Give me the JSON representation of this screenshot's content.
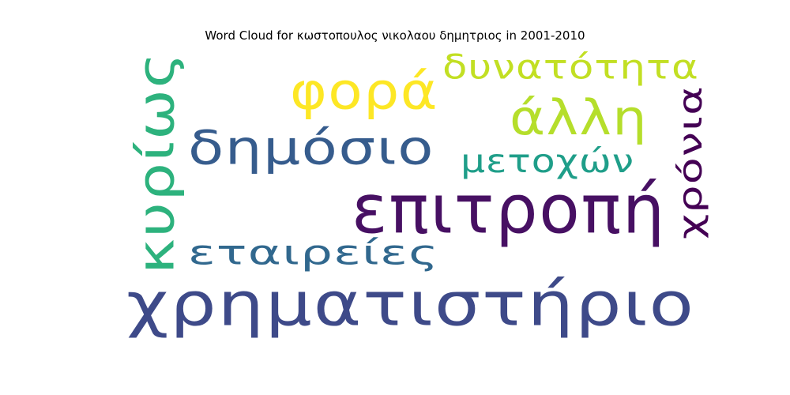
{
  "chart_data": {
    "type": "wordcloud",
    "title": "Word Cloud for κωστοπουλος νικολαου δημητριος in 2001-2010",
    "words": [
      {
        "text": "χρηματιστήριο",
        "color": "#3e4a89",
        "orientation": "horizontal"
      },
      {
        "text": "επιτροπή",
        "color": "#471063",
        "orientation": "horizontal"
      },
      {
        "text": "δημόσιο",
        "color": "#365c8d",
        "orientation": "horizontal"
      },
      {
        "text": "κυρίως",
        "color": "#2db27d",
        "orientation": "vertical"
      },
      {
        "text": "φορά",
        "color": "#fde725",
        "orientation": "horizontal"
      },
      {
        "text": "άλλη",
        "color": "#b5de2b",
        "orientation": "horizontal"
      },
      {
        "text": "δυνατότητα",
        "color": "#c2df23",
        "orientation": "horizontal"
      },
      {
        "text": "εταιρείες",
        "color": "#31688e",
        "orientation": "horizontal"
      },
      {
        "text": "μετοχών",
        "color": "#1f9e89",
        "orientation": "horizontal"
      },
      {
        "text": "χρόνια",
        "color": "#440154",
        "orientation": "vertical"
      }
    ]
  }
}
